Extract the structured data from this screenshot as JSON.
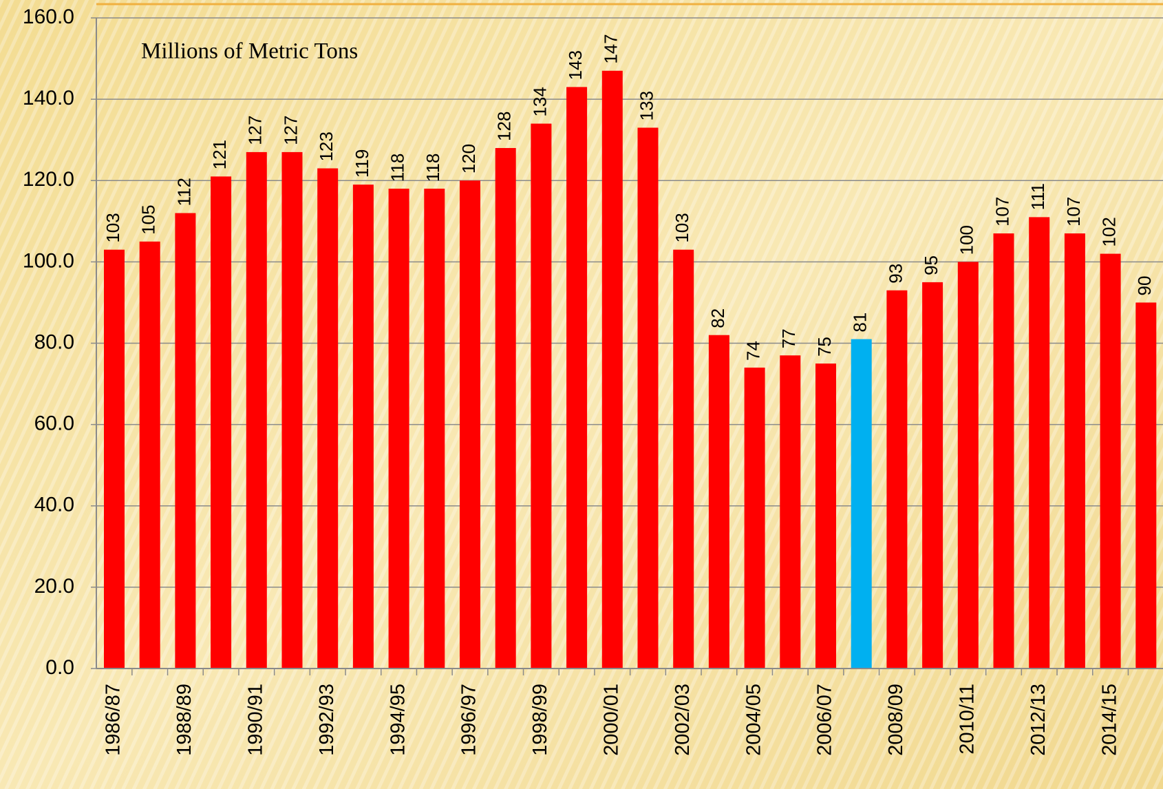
{
  "chart_data": {
    "type": "bar",
    "subtitle": "Millions of Metric Tons",
    "categories": [
      "1986/87",
      null,
      "1988/89",
      null,
      "1990/91",
      null,
      "1992/93",
      null,
      "1994/95",
      null,
      "1996/97",
      null,
      "1998/99",
      null,
      "2000/01",
      null,
      "2002/03",
      null,
      "2004/05",
      null,
      "2006/07",
      null,
      "2008/09",
      null,
      "2010/11",
      null,
      "2012/13",
      null,
      "2014/15",
      null
    ],
    "values": [
      103,
      105,
      112,
      121,
      127,
      127,
      123,
      119,
      118,
      118,
      120,
      128,
      134,
      143,
      147,
      133,
      103,
      82,
      74,
      77,
      75,
      81,
      93,
      95,
      100,
      107,
      111,
      107,
      102,
      90
    ],
    "colors": [
      "#ff0000",
      "#ff0000",
      "#ff0000",
      "#ff0000",
      "#ff0000",
      "#ff0000",
      "#ff0000",
      "#ff0000",
      "#ff0000",
      "#ff0000",
      "#ff0000",
      "#ff0000",
      "#ff0000",
      "#ff0000",
      "#ff0000",
      "#ff0000",
      "#ff0000",
      "#ff0000",
      "#ff0000",
      "#ff0000",
      "#ff0000",
      "#00b0f0",
      "#ff0000",
      "#ff0000",
      "#ff0000",
      "#ff0000",
      "#ff0000",
      "#ff0000",
      "#ff0000",
      "#ff0000"
    ],
    "ylim": [
      0,
      160
    ],
    "yticks": [
      {
        "value": 0,
        "label": "0.0"
      },
      {
        "value": 20,
        "label": "20.0"
      },
      {
        "value": 40,
        "label": "40.0"
      },
      {
        "value": 60,
        "label": "60.0"
      },
      {
        "value": 80,
        "label": "80.0"
      },
      {
        "value": 100,
        "label": "100.0"
      },
      {
        "value": 120,
        "label": "120.0"
      },
      {
        "value": 140,
        "label": "140.0"
      },
      {
        "value": 160,
        "label": "160.0"
      }
    ],
    "grid": true
  }
}
